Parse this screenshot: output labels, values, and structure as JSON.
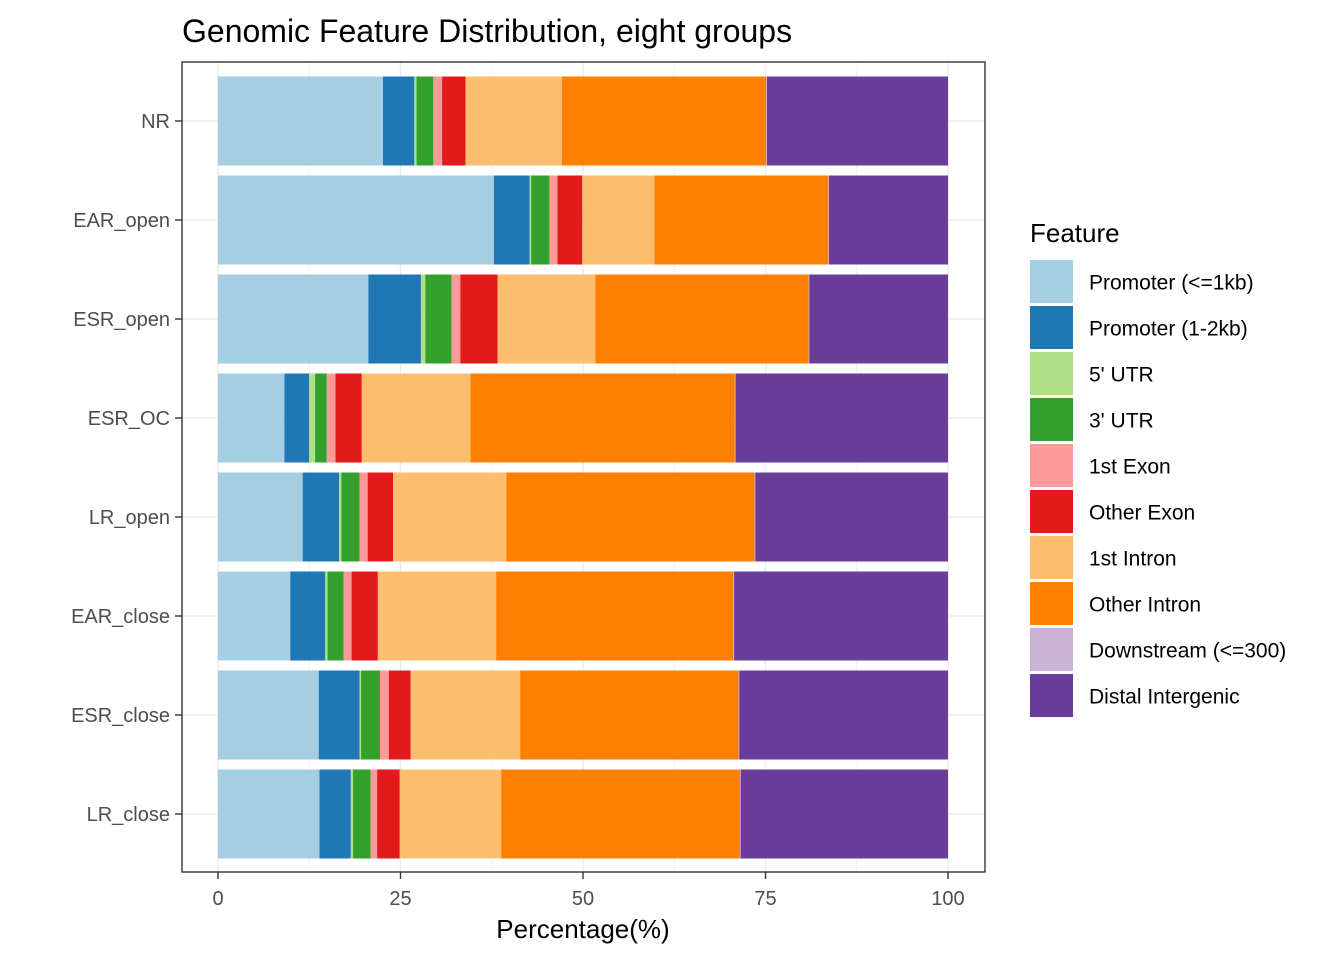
{
  "chart_data": {
    "type": "bar",
    "orientation": "horizontal",
    "stacked": true,
    "title": "Genomic Feature Distribution, eight groups",
    "xlabel": "Percentage(%)",
    "ylabel": "",
    "xlim": [
      0,
      100
    ],
    "xticks": [
      0,
      25,
      50,
      75,
      100
    ],
    "xtick_labels": [
      "0",
      "25",
      "50",
      "75",
      "100"
    ],
    "grid": true,
    "legend_position": "right",
    "legend_title": "Feature",
    "categories": [
      "NR",
      "EAR_open",
      "ESR_open",
      "ESR_OC",
      "LR_open",
      "EAR_close",
      "ESR_close",
      "LR_close"
    ],
    "series": [
      {
        "name": "Promoter (<=1kb)",
        "color": "#A6CEE3",
        "values": [
          22.6,
          37.8,
          20.6,
          9.1,
          11.6,
          9.9,
          13.8,
          13.9
        ]
      },
      {
        "name": "Promoter (1-2kb)",
        "color": "#1F78B4",
        "values": [
          4.3,
          4.9,
          7.2,
          3.4,
          5.0,
          4.8,
          5.6,
          4.3
        ]
      },
      {
        "name": "5' UTR",
        "color": "#B2DF8A",
        "values": [
          0.3,
          0.2,
          0.6,
          0.8,
          0.3,
          0.3,
          0.2,
          0.3
        ]
      },
      {
        "name": "3' UTR",
        "color": "#33A02C",
        "values": [
          2.3,
          2.5,
          3.6,
          1.6,
          2.5,
          2.2,
          2.6,
          2.4
        ]
      },
      {
        "name": "1st Exon",
        "color": "#FB9A99",
        "values": [
          1.2,
          1.1,
          1.2,
          1.2,
          1.1,
          1.1,
          1.2,
          0.9
        ]
      },
      {
        "name": "Other Exon",
        "color": "#E31A1C",
        "values": [
          3.2,
          3.4,
          5.1,
          3.6,
          3.5,
          3.6,
          3.0,
          3.1
        ]
      },
      {
        "name": "1st Intron",
        "color": "#FDBF6F",
        "values": [
          13.2,
          9.9,
          13.4,
          14.9,
          15.5,
          16.2,
          15.0,
          13.9
        ]
      },
      {
        "name": "Other Intron",
        "color": "#FF7F00",
        "values": [
          28.0,
          23.8,
          29.2,
          36.2,
          34.0,
          32.5,
          29.9,
          32.7
        ]
      },
      {
        "name": "Downstream (<=300)",
        "color": "#CAB2D6",
        "values": [
          0.1,
          0.1,
          0.1,
          0.1,
          0.1,
          0.1,
          0.1,
          0.1
        ]
      },
      {
        "name": "Distal Intergenic",
        "color": "#6A3D9A",
        "values": [
          24.8,
          16.3,
          19.0,
          29.1,
          26.4,
          29.3,
          28.6,
          28.4
        ]
      }
    ]
  }
}
